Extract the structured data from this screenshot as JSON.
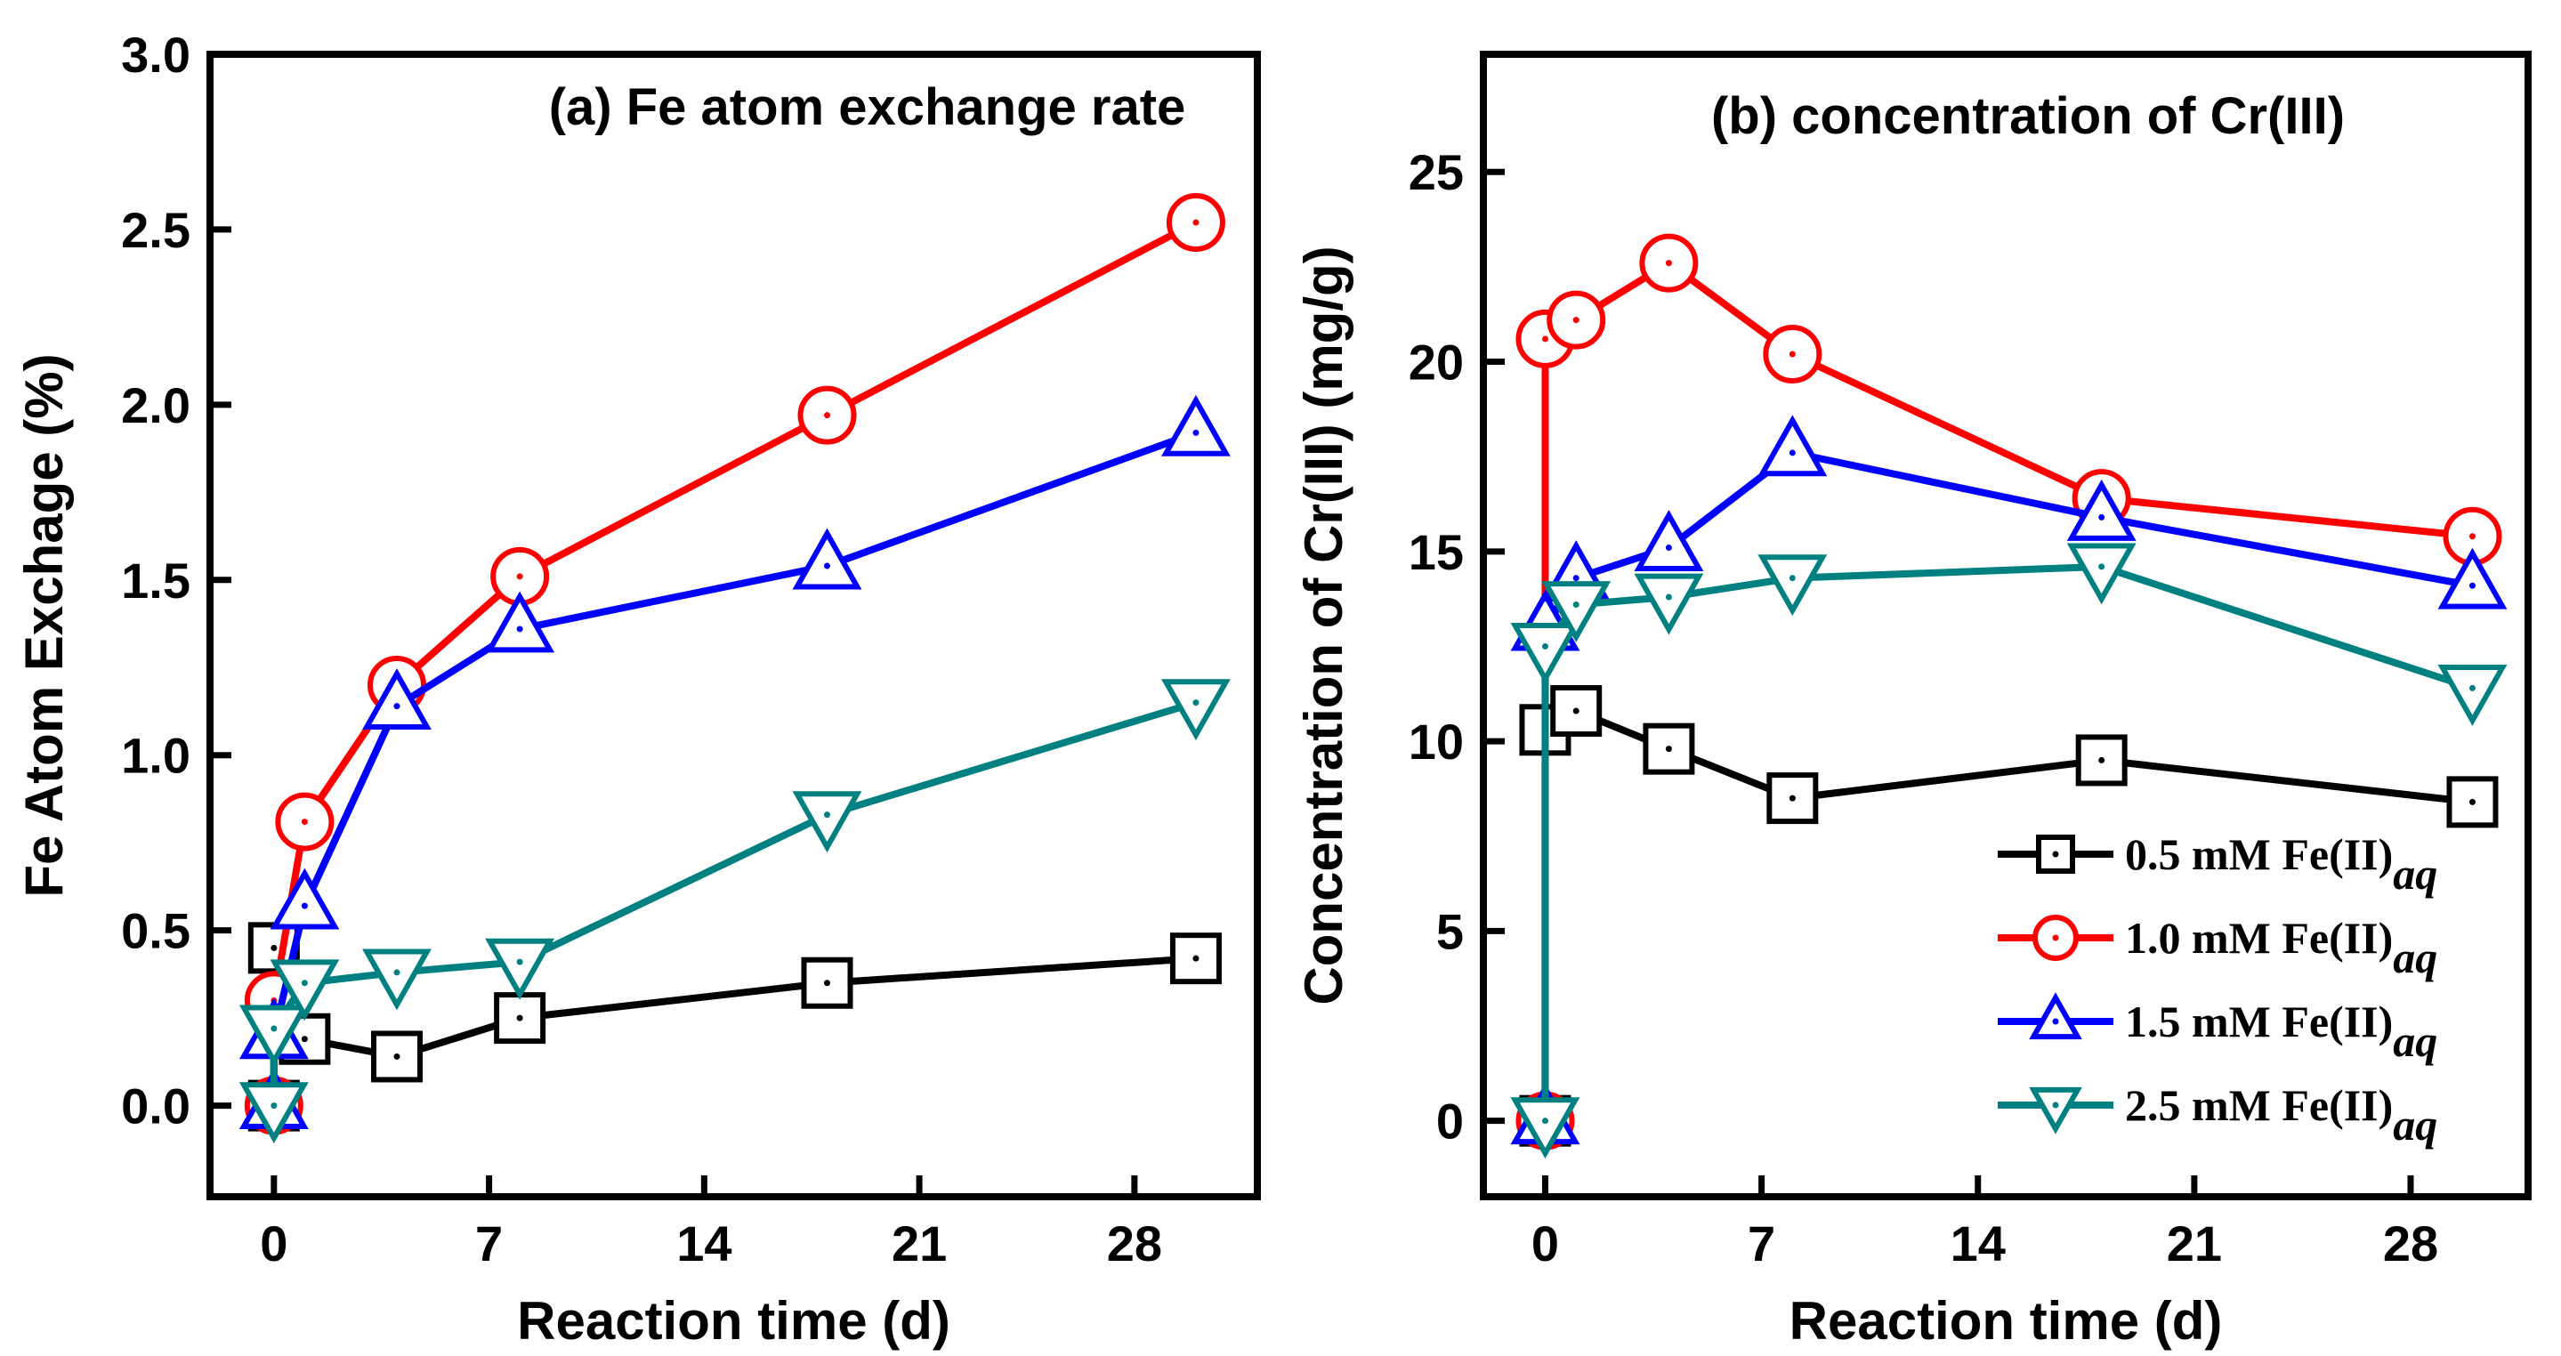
{
  "chart_data": [
    {
      "type": "line",
      "title": "(a) Fe atom exchange rate",
      "xlabel": "Reaction time (d)",
      "ylabel": "Fe Atom Exchage (%)",
      "xlim": [
        -2.08,
        32
      ],
      "ylim": [
        -0.26,
        3.0
      ],
      "xticks": [
        0,
        7,
        14,
        21,
        28
      ],
      "yticks": [
        0.0,
        0.5,
        1.0,
        1.5,
        2.0,
        2.5,
        3.0
      ],
      "ytick_labels": [
        "0.0",
        "0.5",
        "1.0",
        "1.5",
        "2.0",
        "2.5",
        "3.0"
      ],
      "grid": false,
      "series": [
        {
          "name": "0.5 mM Fe(II)aq",
          "color": "#000000",
          "marker": "square",
          "x": [
            0,
            0,
            1,
            4,
            8,
            18,
            30
          ],
          "y": [
            0,
            0.45,
            0.19,
            0.14,
            0.25,
            0.35,
            0.42
          ]
        },
        {
          "name": "1.0 mM Fe(II)aq",
          "color": "#ff0000",
          "marker": "circle",
          "x": [
            0,
            0,
            1,
            4,
            8,
            18,
            30
          ],
          "y": [
            0,
            0.3,
            0.81,
            1.2,
            1.51,
            1.97,
            2.52
          ]
        },
        {
          "name": "1.5 mM Fe(II)aq",
          "color": "#0000ff",
          "marker": "triangle-up",
          "x": [
            0,
            0,
            1,
            4,
            8,
            18,
            30
          ],
          "y": [
            0,
            0.2,
            0.57,
            1.14,
            1.36,
            1.54,
            1.92
          ]
        },
        {
          "name": "2.5 mM Fe(II)aq",
          "color": "#008080",
          "marker": "triangle-down",
          "x": [
            0,
            0,
            1,
            4,
            8,
            18,
            30
          ],
          "y": [
            0,
            0.22,
            0.35,
            0.38,
            0.41,
            0.83,
            1.15
          ]
        }
      ]
    },
    {
      "type": "line",
      "title": "(b) concentration of Cr(III)",
      "xlabel": "Reaction time (d)",
      "ylabel": "Concentration of Cr(III) (mg/g)",
      "xlim": [
        -2.0,
        31.8
      ],
      "ylim": [
        -2.0,
        28.1
      ],
      "xticks": [
        0,
        7,
        14,
        21,
        28
      ],
      "yticks": [
        0,
        5,
        10,
        15,
        20,
        25
      ],
      "ytick_labels": [
        "0",
        "5",
        "10",
        "15",
        "20",
        "25"
      ],
      "grid": false,
      "legend_position": "bottom-right",
      "series": [
        {
          "name": "0.5 mM Fe(II)aq",
          "color": "#000000",
          "marker": "square",
          "x": [
            0,
            0,
            1,
            4,
            8,
            18,
            30
          ],
          "y": [
            0,
            10.3,
            10.8,
            9.8,
            8.5,
            9.5,
            8.4
          ]
        },
        {
          "name": "1.0 mM Fe(II)aq",
          "color": "#ff0000",
          "marker": "circle",
          "x": [
            0,
            0,
            1,
            4,
            8,
            18,
            30
          ],
          "y": [
            0,
            20.6,
            21.1,
            22.6,
            20.2,
            16.4,
            15.4
          ]
        },
        {
          "name": "1.5 mM Fe(II)aq",
          "color": "#0000ff",
          "marker": "triangle-up",
          "x": [
            0,
            0,
            1,
            4,
            8,
            18,
            30
          ],
          "y": [
            0,
            13.0,
            14.3,
            15.1,
            17.6,
            15.9,
            14.1
          ]
        },
        {
          "name": "2.5 mM Fe(II)aq",
          "color": "#008080",
          "marker": "triangle-down",
          "x": [
            0,
            0,
            1,
            4,
            8,
            18,
            30
          ],
          "y": [
            0,
            12.5,
            13.6,
            13.8,
            14.3,
            14.6,
            11.4
          ]
        }
      ]
    }
  ],
  "legend": [
    {
      "main": "0.5 mM Fe(II)",
      "sub": "aq"
    },
    {
      "main": "1.0 mM Fe(II)",
      "sub": "aq"
    },
    {
      "main": "1.5 mM Fe(II)",
      "sub": "aq"
    },
    {
      "main": "2.5 mM Fe(II)",
      "sub": "aq"
    }
  ]
}
